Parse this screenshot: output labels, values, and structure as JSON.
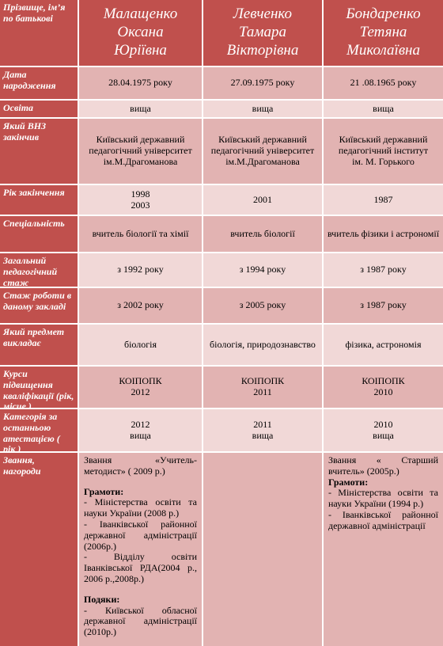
{
  "header": {
    "label": "Прізвище, ім’я по батькові",
    "names": [
      [
        "Малащенко",
        "Оксана",
        "Юріївна"
      ],
      [
        "Левченко",
        "Тамара",
        "Вікторівна"
      ],
      [
        "Бондаренко",
        "Тетяна",
        "Миколаївна"
      ]
    ]
  },
  "rows": [
    {
      "label": "Дата народження",
      "values": [
        "28.04.1975 року",
        "27.09.1975 року",
        "21 .08.1965 року"
      ]
    },
    {
      "label": "Освіта",
      "values": [
        "вища",
        "вища",
        "вища"
      ]
    },
    {
      "label": "Який ВНЗ закінчив",
      "values": [
        [
          "Київський державний",
          "педагогічний університет",
          "ім.М.Драгоманова"
        ],
        [
          "Київський державний",
          "педагогічний університет",
          "ім.М.Драгоманова"
        ],
        [
          "Київський державний",
          "педагогічний інститут",
          "ім. М. Горького"
        ]
      ]
    },
    {
      "label": "Рік закінчення",
      "values": [
        [
          "1998",
          "2003"
        ],
        "2001",
        "1987"
      ]
    },
    {
      "label": "Спеціальність",
      "values": [
        "вчитель біології та хімії",
        "вчитель біології",
        "вчитель фізики і астрономії"
      ]
    },
    {
      "label": "Загальний педагогічний стаж",
      "values": [
        "з 1992 року",
        "з 1994 року",
        "з 1987 року"
      ]
    },
    {
      "label": "Стаж роботи в даному закладі",
      "values": [
        "з 2002 року",
        "з 2005 року",
        "з 1987 року"
      ]
    },
    {
      "label": "Який предмет викладає",
      "values": [
        "біологія",
        "біологія, природознавство",
        "фізика, астрономія"
      ]
    },
    {
      "label": "Курси підвищення кваліфікації (рік, місце )",
      "values": [
        [
          "КОІПОПК",
          "2012"
        ],
        [
          "КОІПОПК",
          "2011"
        ],
        [
          "КОІПОПК",
          "2010"
        ]
      ]
    },
    {
      "label": "Категорія за останньою атестацією ( рік )",
      "values": [
        [
          "2012",
          "вища"
        ],
        [
          "2011",
          "вища"
        ],
        [
          "2010",
          "вища"
        ]
      ]
    }
  ],
  "awards": {
    "label": "Звання, нагороди",
    "values": [
      {
        "title": "Звання «Учитель-методист» ( 2009 р.)",
        "sections": [
          {
            "heading": "Грамоти:",
            "items": [
              "- Міністерства освіти та науки України (2008 р.)",
              "- Іванківської районної державної адміністрації (2006р.)",
              "- Відділу освіти Іванківської РДА(2004 р., 2006 р.,2008р.)"
            ]
          },
          {
            "heading": "Подяки:",
            "items": [
              "- Київської обласної державної адміністрації (2010р.)"
            ]
          }
        ]
      },
      null,
      {
        "title": "Звання « Старший вчитель» (2005р.)",
        "sections": [
          {
            "heading": "Грамоти:",
            "items": [
              "- Міністерства освіти та науки України (1994 р.)",
              "- Іванківської районної державної адміністрації"
            ]
          }
        ]
      }
    ]
  }
}
